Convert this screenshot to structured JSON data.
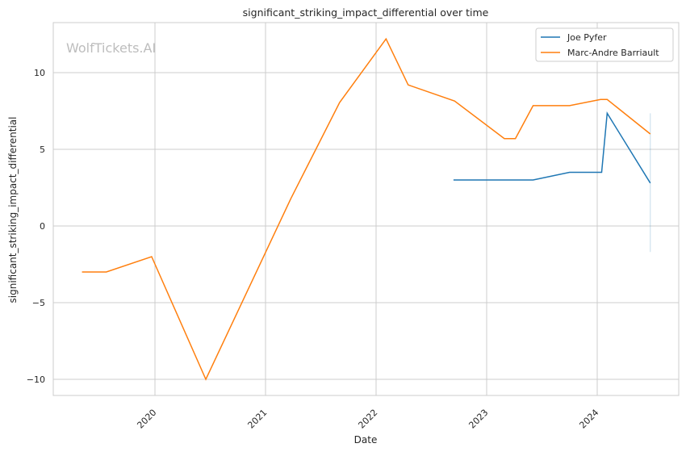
{
  "chart_data": {
    "type": "line",
    "title": "significant_striking_impact_differential over time",
    "xlabel": "Date",
    "ylabel": "significant_striking_impact_differential",
    "watermark": "WolfTickets.AI",
    "xlim": [
      2019.0,
      2024.75
    ],
    "ylim": [
      -11.1,
      13.3
    ],
    "xticks": [
      2020,
      2021,
      2022,
      2023,
      2024
    ],
    "xtick_labels": [
      "2020",
      "2021",
      "2022",
      "2023",
      "2024"
    ],
    "yticks": [
      -10,
      -5,
      0,
      5,
      10
    ],
    "ytick_labels": [
      "−10",
      "−5",
      "0",
      "5",
      "10"
    ],
    "grid": true,
    "legend_position": "top-right",
    "series": [
      {
        "name": "Joe Pyfer",
        "color": "#1f77b4",
        "x": [
          2022.7,
          2023.42,
          2023.75,
          2024.04,
          2024.09,
          2024.48
        ],
        "y": [
          3.0,
          3.0,
          3.5,
          3.5,
          7.35,
          2.8
        ],
        "band": {
          "x": 2024.48,
          "low": -1.7,
          "high": 7.35
        }
      },
      {
        "name": "Marc-Andre Barriault",
        "color": "#ff7f0e",
        "x": [
          2019.34,
          2019.56,
          2019.97,
          2020.46,
          2021.23,
          2021.67,
          2022.09,
          2022.29,
          2022.71,
          2023.16,
          2023.26,
          2023.42,
          2023.75,
          2024.03,
          2024.09,
          2024.48
        ],
        "y": [
          -3.0,
          -3.0,
          -2.0,
          -10.0,
          1.8,
          8.05,
          12.2,
          9.2,
          8.15,
          5.7,
          5.7,
          7.85,
          7.85,
          8.25,
          8.25,
          6.0
        ]
      }
    ]
  }
}
